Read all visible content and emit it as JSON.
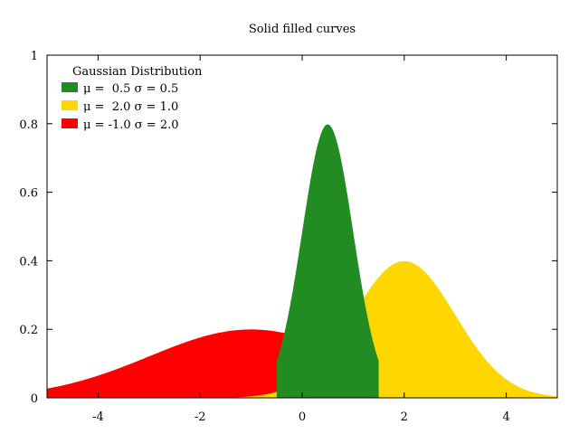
{
  "chart_data": {
    "type": "area",
    "title": "Solid filled curves",
    "xlabel": "",
    "ylabel": "",
    "xlim": [
      -5,
      5
    ],
    "ylim": [
      0,
      1
    ],
    "x_ticks": [
      -4,
      -2,
      0,
      2,
      4
    ],
    "x_tick_labels": [
      "-4",
      "-2",
      "0",
      "2",
      "4"
    ],
    "y_ticks": [
      0,
      0.2,
      0.4,
      0.6,
      0.8,
      1
    ],
    "y_tick_labels": [
      "0",
      "0.2",
      "0.4",
      "0.6",
      "0.8",
      "1"
    ],
    "grid": false,
    "legend": {
      "placement": "top-left",
      "title": "Gaussian Distribution"
    },
    "series": [
      {
        "name": "μ =  0.5 σ = 0.5",
        "mu": 0.5,
        "sigma": 0.5,
        "color": "#228b22",
        "x": [
          -0.5,
          -0.25,
          0,
          0.25,
          0.5,
          0.75,
          1.0,
          1.25,
          1.5
        ],
        "values": [
          0.108,
          0.259,
          0.484,
          0.704,
          0.798,
          0.704,
          0.484,
          0.259,
          0.108
        ]
      },
      {
        "name": "μ =  2.0 σ = 1.0",
        "mu": 2.0,
        "sigma": 1.0,
        "color": "#ffd700",
        "x": [
          0,
          0.5,
          1,
          1.5,
          2,
          2.5,
          3,
          3.5,
          4,
          4.5,
          5
        ],
        "values": [
          0.054,
          0.13,
          0.242,
          0.352,
          0.399,
          0.352,
          0.242,
          0.13,
          0.054,
          0.018,
          0.004
        ]
      },
      {
        "name": "μ = -1.0 σ = 2.0",
        "mu": -1.0,
        "sigma": 2.0,
        "color": "#ff0000",
        "x": [
          -5,
          -4,
          -3,
          -2,
          -1,
          0,
          1,
          2,
          3,
          4,
          5
        ],
        "values": [
          0.027,
          0.065,
          0.121,
          0.176,
          0.199,
          0.176,
          0.121,
          0.065,
          0.027,
          0.009,
          0.002
        ]
      }
    ]
  }
}
